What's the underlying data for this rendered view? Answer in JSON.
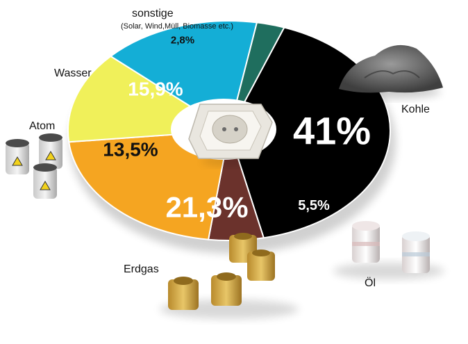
{
  "chart_data": {
    "type": "pie",
    "categories": [
      "Kohle",
      "Öl",
      "Erdgas",
      "Atom",
      "Wasser",
      "sonstige"
    ],
    "values": [
      41,
      5.5,
      21.3,
      13.5,
      15.9,
      2.8
    ],
    "value_labels": [
      "41%",
      "5,5%",
      "21,3%",
      "13,5%",
      "15,9%",
      "2,8%"
    ],
    "sublabels": [
      "",
      "",
      "",
      "",
      "",
      "(Solar, Wind,Müll, Biomasse etc.)"
    ],
    "colors": [
      "#000000",
      "#6b322c",
      "#f5a521",
      "#f0f05a",
      "#14aed6",
      "#1f6e5e"
    ],
    "center_icon": "power-socket-icon"
  }
}
